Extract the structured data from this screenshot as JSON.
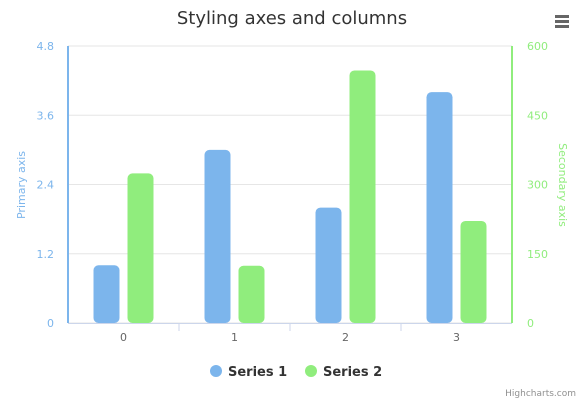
{
  "chart_data": {
    "type": "bar",
    "title": "Styling axes and columns",
    "categories": [
      "0",
      "1",
      "2",
      "3"
    ],
    "series": [
      {
        "name": "Series 1",
        "values": [
          1,
          3,
          2,
          4
        ],
        "axis": "primary",
        "color": "#7cb5ec"
      },
      {
        "name": "Series 2",
        "values": [
          324,
          124,
          547,
          221
        ],
        "axis": "secondary",
        "color": "#90ed7d"
      }
    ],
    "y_primary": {
      "label": "Primary axis",
      "ticks": [
        "0",
        "1.2",
        "2.4",
        "3.6",
        "4.8"
      ],
      "range": [
        0,
        4.8
      ],
      "color": "#7cb5ec"
    },
    "y_secondary": {
      "label": "Secondary axis",
      "ticks": [
        "0",
        "150",
        "300",
        "450",
        "600"
      ],
      "range": [
        0,
        600
      ],
      "color": "#90ed7d"
    },
    "grid": true,
    "legend": "bottom-center"
  },
  "credits": "Highcharts.com",
  "menu_icon": "hamburger-menu-icon"
}
